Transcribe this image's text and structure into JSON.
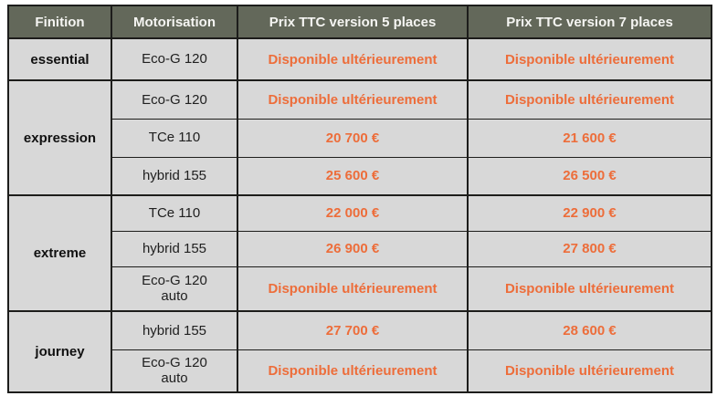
{
  "colors": {
    "header_bg": "#63685a",
    "header_text": "#f5f5f2",
    "cell_bg": "#d8d8d8",
    "price_text": "#ed6d3a",
    "finition_text": "#111111",
    "border": "#1d1d1b"
  },
  "table": {
    "headers": [
      "Finition",
      "Motorisation",
      "Prix TTC version 5 places",
      "Prix TTC version 7 places"
    ],
    "unavailable_label": "Disponible ultérieurement",
    "groups": [
      {
        "finition": "essential",
        "rows": [
          {
            "motorisation": "Eco-G 120",
            "prix_5_places": "Disponible ultérieurement",
            "prix_7_places": "Disponible ultérieurement"
          }
        ]
      },
      {
        "finition": "expression",
        "rows": [
          {
            "motorisation": "Eco-G 120",
            "prix_5_places": "Disponible ultérieurement",
            "prix_7_places": "Disponible ultérieurement"
          },
          {
            "motorisation": "TCe 110",
            "prix_5_places": "20 700 €",
            "prix_7_places": "21 600 €"
          },
          {
            "motorisation": "hybrid 155",
            "prix_5_places": "25 600 €",
            "prix_7_places": "26 500 €"
          }
        ]
      },
      {
        "finition": "extreme",
        "rows": [
          {
            "motorisation": "TCe 110",
            "prix_5_places": "22 000 €",
            "prix_7_places": "22 900 €"
          },
          {
            "motorisation": "hybrid 155",
            "prix_5_places": "26 900 €",
            "prix_7_places": "27 800 €"
          },
          {
            "motorisation": "Eco-G 120 auto",
            "prix_5_places": "Disponible ultérieurement",
            "prix_7_places": "Disponible ultérieurement"
          }
        ]
      },
      {
        "finition": "journey",
        "rows": [
          {
            "motorisation": "hybrid 155",
            "prix_5_places": "27 700 €",
            "prix_7_places": "28 600 €"
          },
          {
            "motorisation": "Eco-G 120 auto",
            "prix_5_places": "Disponible ultérieurement",
            "prix_7_places": "Disponible ultérieurement"
          }
        ]
      }
    ]
  }
}
